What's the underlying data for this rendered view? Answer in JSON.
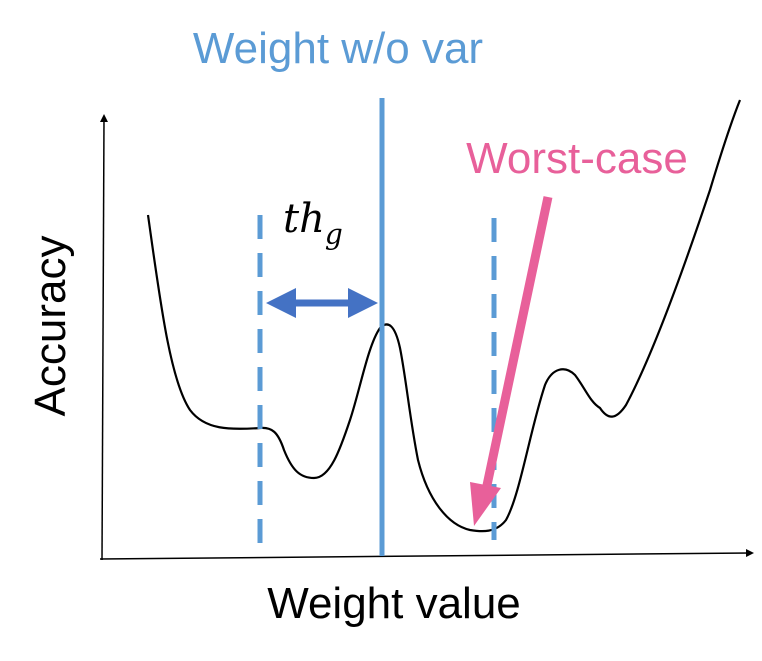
{
  "title": "Weight w/o var",
  "worst_case_label": "Worst-case",
  "threshold_label": {
    "base": "th",
    "subscript": "g"
  },
  "axes": {
    "xlabel": "Weight value",
    "ylabel": "Accuracy"
  },
  "colors": {
    "title_blue": "#5B9BD5",
    "arrow_blue": "#4472C4",
    "pink": "#E8609A",
    "curve": "#000000"
  }
}
